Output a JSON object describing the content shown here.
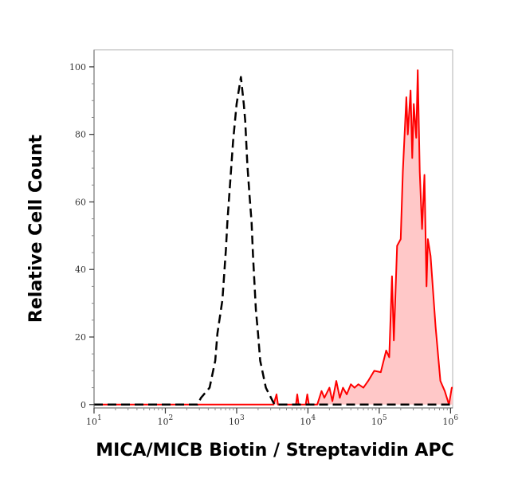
{
  "chart_data": {
    "type": "area",
    "xlabel": "MICA/MICB Biotin / Streptavidin APC",
    "ylabel": "Relative Cell Count",
    "xscale": "log",
    "xlim": [
      10,
      1070000
    ],
    "ylim": [
      -1,
      105
    ],
    "grid": false,
    "x_tick_labels": [
      {
        "base": "10",
        "exp": "1",
        "value": 10
      },
      {
        "base": "10",
        "exp": "2",
        "value": 100
      },
      {
        "base": "10",
        "exp": "3",
        "value": 1000
      },
      {
        "base": "10",
        "exp": "4",
        "value": 10000
      },
      {
        "base": "10",
        "exp": "5",
        "value": 100000
      },
      {
        "base": "10",
        "exp": "6",
        "value": 1000000
      }
    ],
    "y_ticks": [
      0,
      20,
      40,
      60,
      80,
      100
    ],
    "y_tick_labels": [
      "0",
      "20",
      "40",
      "60",
      "80",
      "100"
    ],
    "series": [
      {
        "style": "dashed",
        "color": "#000000",
        "fill": "none",
        "points": [
          [
            10,
            0
          ],
          [
            282,
            0
          ],
          [
            316,
            2
          ],
          [
            417,
            5
          ],
          [
            501,
            13
          ],
          [
            537,
            21
          ],
          [
            631,
            31
          ],
          [
            708,
            46
          ],
          [
            741,
            54
          ],
          [
            794,
            63
          ],
          [
            891,
            78
          ],
          [
            1000,
            89
          ],
          [
            1148,
            97
          ],
          [
            1259,
            89
          ],
          [
            1318,
            84
          ],
          [
            1413,
            71
          ],
          [
            1514,
            62
          ],
          [
            1622,
            54
          ],
          [
            1698,
            44
          ],
          [
            1778,
            36
          ],
          [
            1862,
            28
          ],
          [
            1995,
            21
          ],
          [
            2138,
            13
          ],
          [
            2570,
            5
          ],
          [
            3388,
            0
          ],
          [
            1070000,
            0
          ]
        ]
      },
      {
        "style": "solid",
        "color": "#ff0000",
        "fill": "#ffc8c8",
        "points": [
          [
            10,
            0
          ],
          [
            3300,
            0
          ],
          [
            3630,
            3
          ],
          [
            3800,
            0
          ],
          [
            6800,
            0
          ],
          [
            7080,
            3
          ],
          [
            7400,
            0
          ],
          [
            9300,
            0
          ],
          [
            9800,
            3
          ],
          [
            10300,
            0
          ],
          [
            13500,
            0
          ],
          [
            15500,
            4
          ],
          [
            17000,
            2
          ],
          [
            20000,
            5
          ],
          [
            22000,
            1
          ],
          [
            25000,
            7
          ],
          [
            28000,
            2
          ],
          [
            31000,
            5
          ],
          [
            35000,
            3
          ],
          [
            40000,
            6
          ],
          [
            45000,
            5
          ],
          [
            51000,
            6
          ],
          [
            60000,
            5
          ],
          [
            70000,
            7
          ],
          [
            85000,
            10
          ],
          [
            105000,
            9.6
          ],
          [
            125000,
            16
          ],
          [
            138000,
            14
          ],
          [
            151000,
            38
          ],
          [
            160000,
            19
          ],
          [
            178000,
            47
          ],
          [
            200000,
            49
          ],
          [
            214000,
            69
          ],
          [
            240000,
            91
          ],
          [
            251000,
            80
          ],
          [
            275000,
            93
          ],
          [
            290000,
            73
          ],
          [
            305000,
            89
          ],
          [
            330000,
            79
          ],
          [
            347000,
            99
          ],
          [
            370000,
            69
          ],
          [
            398000,
            52
          ],
          [
            430000,
            68
          ],
          [
            460000,
            35
          ],
          [
            480000,
            49
          ],
          [
            525000,
            44
          ],
          [
            617000,
            23
          ],
          [
            720000,
            7
          ],
          [
            830000,
            4
          ],
          [
            950000,
            0
          ],
          [
            1040000,
            5
          ],
          [
            1070000,
            5
          ]
        ]
      }
    ]
  }
}
